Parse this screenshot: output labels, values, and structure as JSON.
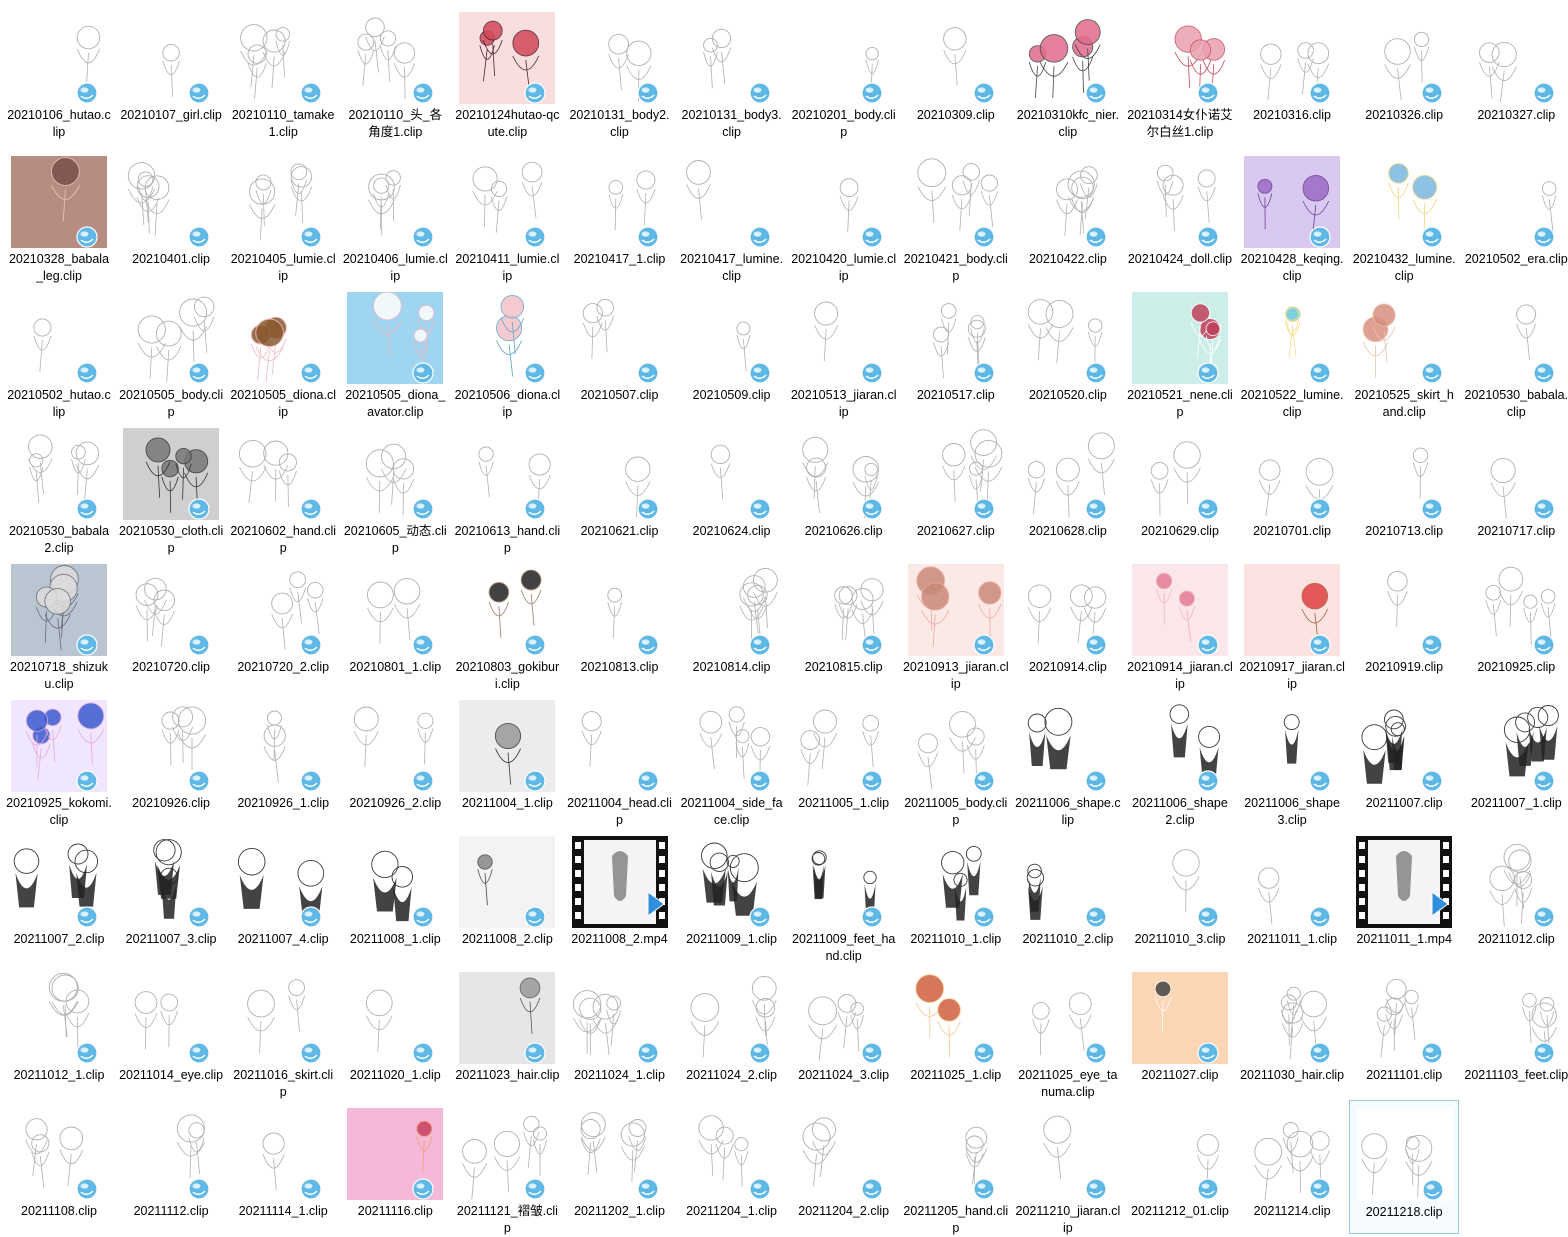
{
  "view": "Large icons",
  "selected": "20211218.clip",
  "icons": {
    "clip": "clip-studio-file-icon",
    "mp4": "video-film-icon"
  },
  "colors": {
    "selection_border": "#99c9ef",
    "clip_badge": "#5fb8e6",
    "video_play": "#2e8fde"
  },
  "rows": [
    [
      "20210106_hutao.clip",
      "20210107_girl.clip",
      "20210110_tamake1.clip",
      "20210110_头_各角度1.clip",
      "20210124hutao-qcute.clip",
      "20210131_body2.clip",
      "20210131_body3.clip",
      "20210201_body.clip",
      "20210309.clip",
      "20210310kfc_nier.clip",
      "20210314女仆诺艾尔白丝1.clip",
      "20210316.clip",
      "20210326.clip",
      "20210327.clip"
    ],
    [
      "20210328_babala_leg.clip",
      "20210401.clip",
      "20210405_lumie.clip",
      "20210406_lumie.clip",
      "20210411_lumie.clip",
      "20210417_1.clip",
      "20210417_lumine.clip",
      "20210420_lumie.clip",
      "20210421_body.clip",
      "20210422.clip",
      "20210424_doll.clip",
      "20210428_keqing.clip",
      "20210432_lumine.clip",
      "20210502_era.clip"
    ],
    [
      "20210502_hutao.clip",
      "20210505_body.clip",
      "20210505_diona.clip",
      "20210505_diona_avator.clip",
      "20210506_diona.clip",
      "20210507.clip",
      "20210509.clip",
      "20210513_jiaran.clip",
      "20210517.clip",
      "20210520.clip",
      "20210521_nene.clip",
      "20210522_lumine.clip",
      "20210525_skirt_hand.clip",
      "20210530_babala.clip"
    ],
    [
      "20210530_babala2.clip",
      "20210530_cloth.clip",
      "20210602_hand.clip",
      "20210605_动态.clip",
      "20210613_hand.clip",
      "20210621.clip",
      "20210624.clip",
      "20210626.clip",
      "20210627.clip",
      "20210628.clip",
      "20210629.clip",
      "20210701.clip",
      "20210713.clip",
      "20210717.clip"
    ],
    [
      "20210718_shizuku.clip",
      "20210720.clip",
      "20210720_2.clip",
      "20210801_1.clip",
      "20210803_gokiburi.clip",
      "20210813.clip",
      "20210814.clip",
      "20210815.clip",
      "20210913_jiaran.clip",
      "20210914.clip",
      "20210914_jiaran.clip",
      "20210917_jiaran.clip",
      "20210919.clip",
      "20210925.clip"
    ],
    [
      "20210925_kokomi.clip",
      "20210926.clip",
      "20210926_1.clip",
      "20210926_2.clip",
      "20211004_1.clip",
      "20211004_head.clip",
      "20211004_side_face.clip",
      "20211005_1.clip",
      "20211005_body.clip",
      "20211006_shape.clip",
      "20211006_shape2.clip",
      "20211006_shape3.clip",
      "20211007.clip",
      "20211007_1.clip"
    ],
    [
      "20211007_2.clip",
      "20211007_3.clip",
      "20211007_4.clip",
      "20211008_1.clip",
      "20211008_2.clip",
      "20211008_2.mp4",
      "20211009_1.clip",
      "20211009_feet_hand.clip",
      "20211010_1.clip",
      "20211010_2.clip",
      "20211010_3.clip",
      "20211011_1.clip",
      "20211011_1.mp4",
      "20211012.clip"
    ],
    [
      "20211012_1.clip",
      "20211014_eye.clip",
      "20211016_skirt.clip",
      "20211020_1.clip",
      "20211023_hair.clip",
      "20211024_1.clip",
      "20211024_2.clip",
      "20211024_3.clip",
      "20211025_1.clip",
      "20211025_eye_tanuma.clip",
      "20211027.clip",
      "20211030_hair.clip",
      "20211101.clip",
      "20211103_feet.clip"
    ],
    [
      "20211108.clip",
      "20211112.clip",
      "20211114_1.clip",
      "20211116.clip",
      "20211121_褶皱.clip",
      "20211202_1.clip",
      "20211204_1.clip",
      "20211204_2.clip",
      "20211205_hand.clip",
      "20211210_jiaran.clip",
      "20211212_01.clip",
      "20211214.clip",
      "20211218.clip"
    ]
  ]
}
